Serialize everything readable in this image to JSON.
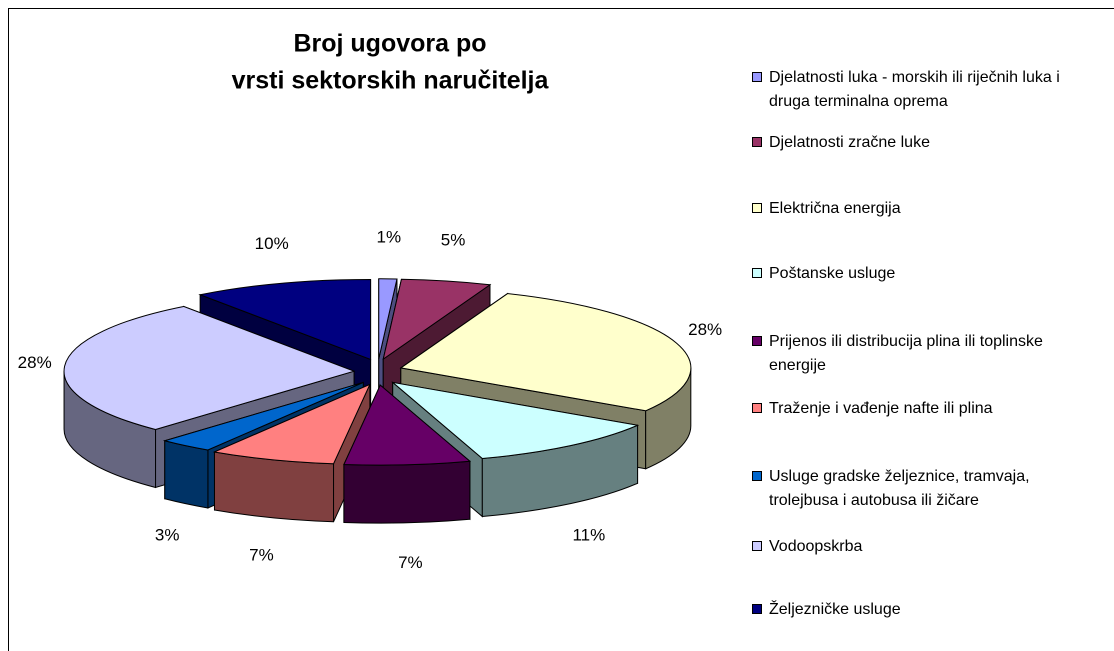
{
  "chart_data": {
    "type": "pie3d",
    "title": [
      "Broj ugovora po",
      "vrsti sektorskih naručitelja"
    ],
    "categories": [
      "Djelatnosti luka - morskih ili riječnih luka i druga terminalna oprema",
      "Djelatnosti zračne luke",
      "Električna energija",
      "Poštanske usluge",
      "Prijenos ili distribucija plina ili toplinske energije",
      "Traženje i vađenje nafte ili plina",
      "Usluge gradske željeznice, tramvaja, trolejbusa i autobusa ili žičare",
      "Vodoopskrba",
      "Željezničke usluge"
    ],
    "values": [
      1,
      5,
      28,
      11,
      7,
      7,
      3,
      28,
      10
    ],
    "value_labels": [
      "1%",
      "5%",
      "28%",
      "11%",
      "7%",
      "7%",
      "3%",
      "28%",
      "10%"
    ],
    "colors": [
      "#9999ff",
      "#993366",
      "#ffffcc",
      "#ccffff",
      "#660066",
      "#ff8080",
      "#0066cc",
      "#ccccff",
      "#000080"
    ],
    "legend": "right"
  }
}
